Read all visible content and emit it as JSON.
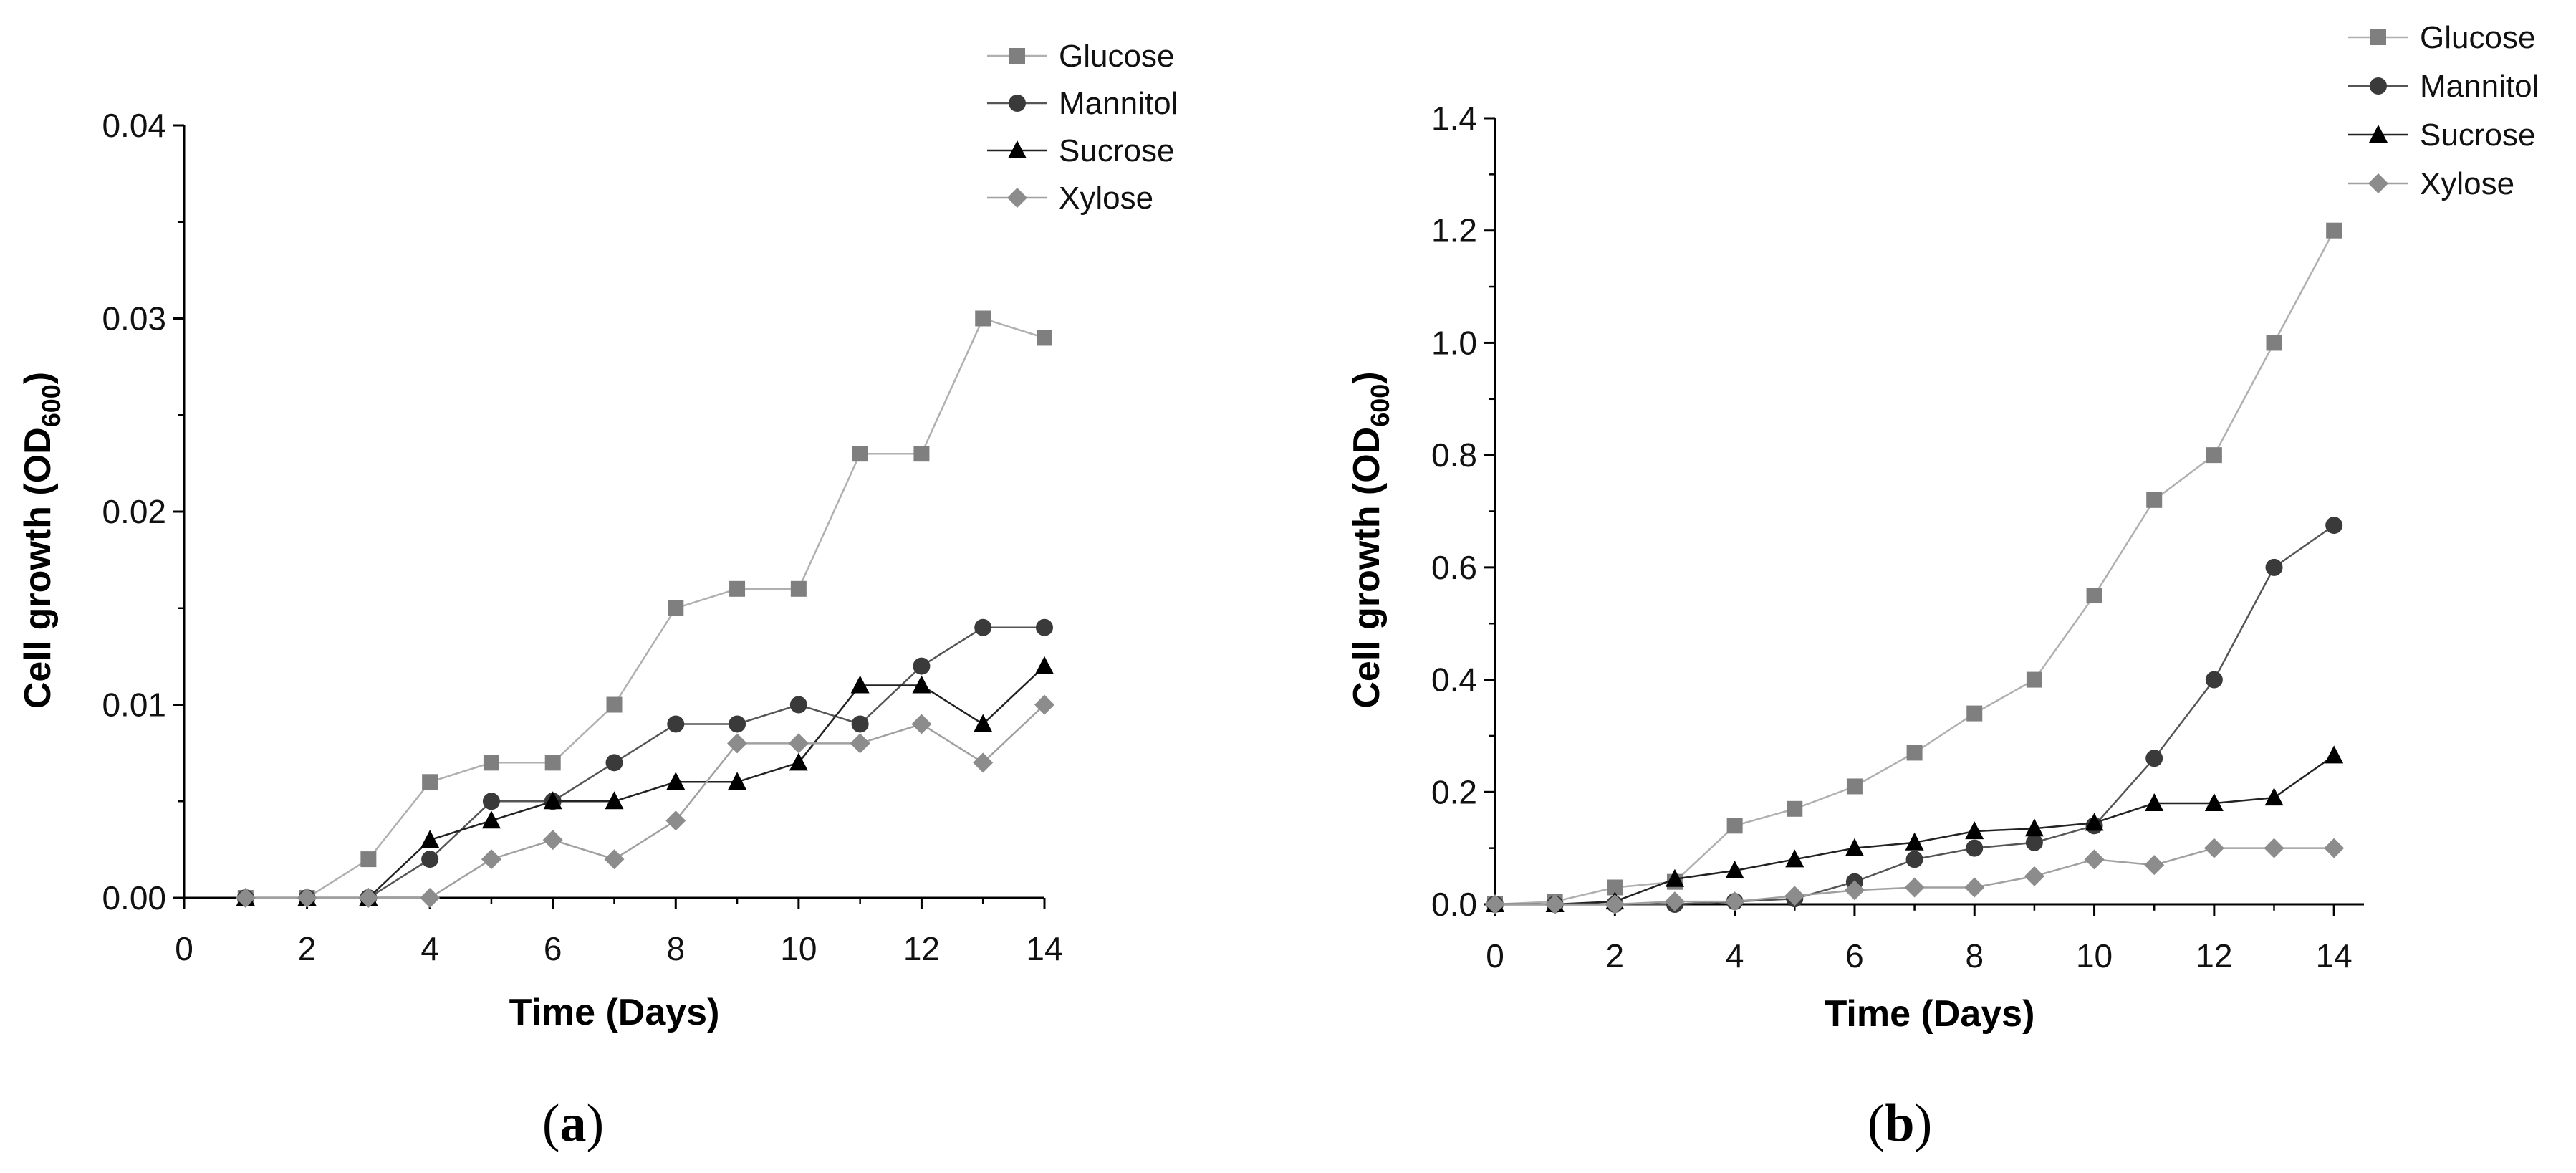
{
  "figure_labels": [
    {
      "open": "(",
      "letter": "a",
      "close": ")"
    },
    {
      "open": "(",
      "letter": "b",
      "close": ")"
    }
  ],
  "series_styles": [
    {
      "name": "Glucose",
      "marker": "square",
      "color": "#7f7f7f",
      "line": "#b0b0b0"
    },
    {
      "name": "Mannitol",
      "marker": "circle",
      "color": "#3a3a3a",
      "line": "#555555"
    },
    {
      "name": "Sucrose",
      "marker": "triangle",
      "color": "#000000",
      "line": "#222222"
    },
    {
      "name": "Xylose",
      "marker": "diamond",
      "color": "#8c8c8c",
      "line": "#a0a0a0"
    }
  ],
  "chart_data": [
    {
      "type": "line",
      "panel": "a",
      "xlabel": "Time (Days)",
      "ylabel_main": "Cell growth (OD",
      "ylabel_sub": "600",
      "ylabel_end": ")",
      "xlim": [
        0,
        14
      ],
      "ylim": [
        0,
        0.04
      ],
      "xticks": [
        0,
        2,
        4,
        6,
        8,
        10,
        12,
        14
      ],
      "yticks": [
        0.0,
        0.01,
        0.02,
        0.03,
        0.04
      ],
      "ytick_labels": [
        "0.00",
        "0.01",
        "0.02",
        "0.03",
        "0.04"
      ],
      "legend_position": "top-right",
      "series": [
        {
          "name": "Glucose",
          "x": [
            1,
            2,
            3,
            4,
            5,
            6,
            7,
            8,
            9,
            10,
            11,
            12,
            13,
            14
          ],
          "values": [
            0,
            0,
            0.002,
            0.006,
            0.007,
            0.007,
            0.01,
            0.015,
            0.016,
            0.016,
            0.023,
            0.023,
            0.03,
            0.029
          ]
        },
        {
          "name": "Mannitol",
          "x": [
            1,
            2,
            3,
            4,
            5,
            6,
            7,
            8,
            9,
            10,
            11,
            12,
            13,
            14
          ],
          "values": [
            0,
            0,
            0,
            0.002,
            0.005,
            0.005,
            0.007,
            0.009,
            0.009,
            0.01,
            0.009,
            0.012,
            0.014,
            0.014
          ]
        },
        {
          "name": "Sucrose",
          "x": [
            1,
            2,
            3,
            4,
            5,
            6,
            7,
            8,
            9,
            10,
            11,
            12,
            13,
            14
          ],
          "values": [
            0,
            0,
            0,
            0.003,
            0.004,
            0.005,
            0.005,
            0.006,
            0.006,
            0.007,
            0.011,
            0.011,
            0.009,
            0.012
          ]
        },
        {
          "name": "Xylose",
          "x": [
            1,
            2,
            3,
            4,
            5,
            6,
            7,
            8,
            9,
            10,
            11,
            12,
            13,
            14
          ],
          "values": [
            0,
            0,
            0,
            0,
            0.002,
            0.003,
            0.002,
            0.004,
            0.008,
            0.008,
            0.008,
            0.009,
            0.007,
            0.01
          ]
        }
      ]
    },
    {
      "type": "line",
      "panel": "b",
      "xlabel": "Time (Days)",
      "ylabel_main": "Cell growth (OD",
      "ylabel_sub": "600",
      "ylabel_end": ")",
      "xlim": [
        0,
        14.5
      ],
      "ylim": [
        0,
        1.4
      ],
      "xticks": [
        0,
        2,
        4,
        6,
        8,
        10,
        12,
        14
      ],
      "yticks": [
        0.0,
        0.2,
        0.4,
        0.6,
        0.8,
        1.0,
        1.2,
        1.4
      ],
      "ytick_labels": [
        "0.0",
        "0.2",
        "0.4",
        "0.6",
        "0.8",
        "1.0",
        "1.2",
        "1.4"
      ],
      "legend_position": "top-right",
      "series": [
        {
          "name": "Glucose",
          "x": [
            0,
            1,
            2,
            3,
            4,
            5,
            6,
            7,
            8,
            9,
            10,
            11,
            12,
            13,
            14
          ],
          "values": [
            0,
            0.005,
            0.03,
            0.04,
            0.14,
            0.17,
            0.21,
            0.27,
            0.34,
            0.4,
            0.55,
            0.72,
            0.8,
            1.0,
            1.2
          ]
        },
        {
          "name": "Mannitol",
          "x": [
            0,
            1,
            2,
            3,
            4,
            5,
            6,
            7,
            8,
            9,
            10,
            11,
            12,
            13,
            14
          ],
          "values": [
            0,
            0,
            0,
            0,
            0.005,
            0.01,
            0.04,
            0.08,
            0.1,
            0.11,
            0.14,
            0.26,
            0.4,
            0.6,
            0.675
          ]
        },
        {
          "name": "Sucrose",
          "x": [
            0,
            1,
            2,
            3,
            4,
            5,
            6,
            7,
            8,
            9,
            10,
            11,
            12,
            13,
            14
          ],
          "values": [
            0,
            0,
            0.005,
            0.045,
            0.06,
            0.08,
            0.1,
            0.11,
            0.13,
            0.135,
            0.145,
            0.18,
            0.18,
            0.19,
            0.265
          ]
        },
        {
          "name": "Xylose",
          "x": [
            0,
            1,
            2,
            3,
            4,
            5,
            6,
            7,
            8,
            9,
            10,
            11,
            12,
            13,
            14
          ],
          "values": [
            0,
            0,
            0,
            0.005,
            0.005,
            0.015,
            0.025,
            0.03,
            0.03,
            0.05,
            0.08,
            0.07,
            0.1,
            0.1,
            0.1
          ]
        }
      ]
    }
  ]
}
